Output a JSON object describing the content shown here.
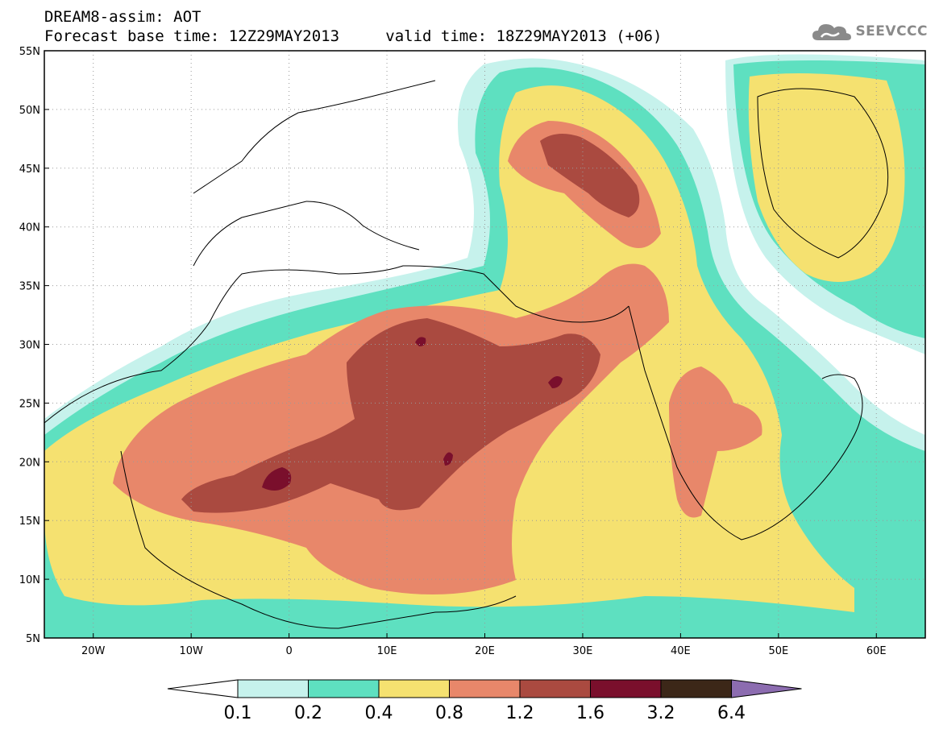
{
  "header": {
    "line1": "DREAM8-assim: AOT",
    "base_time_label": "Forecast base time: 12Z29MAY2013",
    "valid_time_label": "valid time: 18Z29MAY2013 (+06)"
  },
  "logo": {
    "text": "SEEVCCC",
    "icon": "cloud-logo-icon"
  },
  "map": {
    "lat_labels": [
      "55N",
      "50N",
      "45N",
      "40N",
      "35N",
      "30N",
      "25N",
      "20N",
      "15N",
      "10N",
      "5N"
    ],
    "lon_labels": [
      "20W",
      "10W",
      "0",
      "10E",
      "20E",
      "30E",
      "40E",
      "50E",
      "60E"
    ],
    "lat_values": [
      55,
      50,
      45,
      40,
      35,
      30,
      25,
      20,
      15,
      10,
      5
    ],
    "lon_values": [
      -20,
      -10,
      0,
      10,
      20,
      30,
      40,
      50,
      60
    ],
    "lon_range": [
      -25,
      65
    ],
    "lat_range": [
      5,
      55
    ],
    "gridlines": "dotted"
  },
  "colorbar": {
    "colors": [
      "#ffffff",
      "#c6f2ec",
      "#5ee0c0",
      "#f5e170",
      "#e8876a",
      "#aa4a40",
      "#7a0f2c",
      "#3c2718",
      "#8c6cb0"
    ],
    "labels": [
      "0.1",
      "0.2",
      "0.4",
      "0.8",
      "1.2",
      "1.6",
      "3.2",
      "6.4"
    ]
  }
}
